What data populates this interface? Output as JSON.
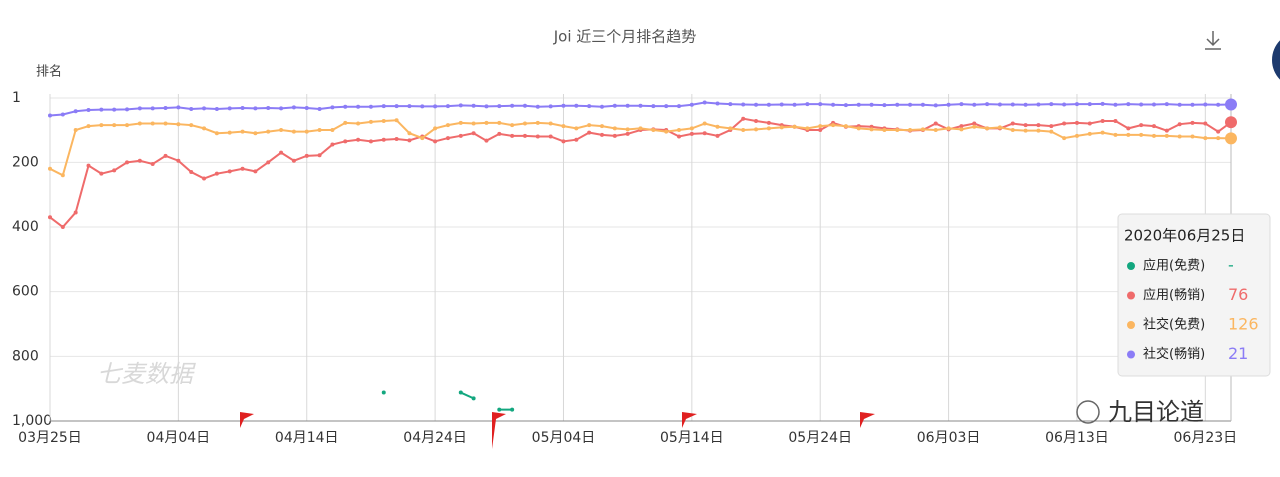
{
  "chart_data": {
    "type": "line",
    "title": "Joi 近三个月排名趋势",
    "y_label": "排名",
    "watermark": "七麦数据",
    "brand": "九目论道",
    "y_inverted": true,
    "grid": true,
    "ylim": [
      1,
      1000
    ],
    "yticks": [
      1,
      200,
      400,
      600,
      800,
      {
        "value": 1000,
        "label": "1,000"
      }
    ],
    "categories": [
      "03月25日",
      null,
      null,
      null,
      null,
      null,
      null,
      null,
      null,
      null,
      "04月04日",
      null,
      null,
      null,
      null,
      null,
      null,
      null,
      null,
      null,
      "04月14日",
      null,
      null,
      null,
      null,
      null,
      null,
      null,
      null,
      null,
      "04月24日",
      null,
      null,
      null,
      null,
      null,
      null,
      null,
      null,
      null,
      "05月04日",
      null,
      null,
      null,
      null,
      null,
      null,
      null,
      null,
      null,
      "05月14日",
      null,
      null,
      null,
      null,
      null,
      null,
      null,
      null,
      null,
      "05月24日",
      null,
      null,
      null,
      null,
      null,
      null,
      null,
      null,
      null,
      "06月03日",
      null,
      null,
      null,
      null,
      null,
      null,
      null,
      null,
      null,
      "06月13日",
      null,
      null,
      null,
      null,
      null,
      null,
      null,
      null,
      null,
      "06月23日",
      null,
      null
    ],
    "series": [
      {
        "name": "应用(免费)",
        "color": "#13a77f",
        "values": [
          null,
          null,
          null,
          null,
          null,
          null,
          null,
          null,
          null,
          null,
          null,
          null,
          null,
          null,
          null,
          null,
          null,
          null,
          null,
          null,
          null,
          null,
          null,
          null,
          null,
          null,
          912,
          null,
          null,
          null,
          null,
          null,
          912,
          930,
          null,
          965,
          965,
          null,
          null,
          null,
          null,
          null,
          null,
          null,
          null,
          null,
          null,
          null,
          null,
          null,
          null,
          null,
          null,
          null,
          null,
          null,
          null,
          null,
          null,
          null,
          null,
          null,
          null,
          null,
          null,
          null,
          null,
          null,
          null,
          null,
          null,
          null,
          null,
          null,
          null,
          null,
          null,
          null,
          null,
          null,
          null,
          null,
          null,
          null,
          null,
          null,
          null,
          null,
          null,
          null,
          null,
          null,
          null
        ]
      },
      {
        "name": "应用(畅销)",
        "color": "#ef6b6b",
        "values": [
          370,
          400,
          355,
          210,
          235,
          225,
          200,
          195,
          205,
          180,
          195,
          230,
          250,
          235,
          228,
          220,
          228,
          200,
          170,
          195,
          180,
          178,
          145,
          135,
          130,
          135,
          130,
          128,
          132,
          120,
          135,
          125,
          118,
          110,
          133,
          112,
          118,
          118,
          120,
          120,
          135,
          130,
          108,
          115,
          118,
          112,
          100,
          98,
          100,
          120,
          112,
          110,
          118,
          100,
          65,
          72,
          78,
          85,
          90,
          100,
          100,
          78,
          90,
          88,
          90,
          95,
          98,
          102,
          100,
          80,
          98,
          88,
          80,
          95,
          95,
          80,
          85,
          85,
          88,
          80,
          78,
          80,
          72,
          72,
          95,
          85,
          88,
          102,
          82,
          78,
          80,
          105,
          76
        ]
      },
      {
        "name": "社交(免费)",
        "color": "#fbb660",
        "values": [
          220,
          240,
          100,
          88,
          85,
          85,
          85,
          80,
          80,
          80,
          82,
          85,
          95,
          110,
          108,
          105,
          110,
          105,
          100,
          105,
          105,
          100,
          100,
          78,
          80,
          75,
          72,
          70,
          110,
          125,
          95,
          85,
          78,
          80,
          78,
          78,
          85,
          80,
          78,
          80,
          88,
          95,
          85,
          88,
          95,
          98,
          95,
          100,
          105,
          100,
          95,
          80,
          90,
          95,
          100,
          98,
          95,
          92,
          90,
          95,
          88,
          85,
          88,
          95,
          98,
          100,
          100,
          100,
          98,
          100,
          95,
          98,
          90,
          95,
          92,
          100,
          102,
          102,
          105,
          125,
          118,
          112,
          108,
          115,
          115,
          115,
          118,
          118,
          120,
          120,
          125,
          125,
          126
        ]
      },
      {
        "name": "社交(畅销)",
        "color": "#8b7cf6",
        "values": [
          55,
          52,
          42,
          38,
          37,
          37,
          36,
          33,
          33,
          32,
          30,
          35,
          33,
          35,
          33,
          32,
          33,
          32,
          33,
          30,
          32,
          35,
          30,
          28,
          28,
          28,
          26,
          26,
          26,
          27,
          27,
          26,
          24,
          25,
          27,
          26,
          25,
          25,
          28,
          27,
          25,
          25,
          26,
          28,
          25,
          25,
          25,
          26,
          26,
          26,
          22,
          15,
          18,
          20,
          21,
          22,
          22,
          21,
          22,
          20,
          20,
          22,
          23,
          22,
          22,
          23,
          22,
          22,
          22,
          24,
          22,
          20,
          22,
          20,
          21,
          21,
          22,
          21,
          20,
          21,
          20,
          20,
          19,
          22,
          20,
          21,
          21,
          20,
          22,
          22,
          21,
          22,
          21
        ]
      }
    ],
    "tooltip": {
      "date": "2020年06月25日",
      "value_labels": [
        "-",
        "76",
        "126",
        "21"
      ]
    }
  }
}
